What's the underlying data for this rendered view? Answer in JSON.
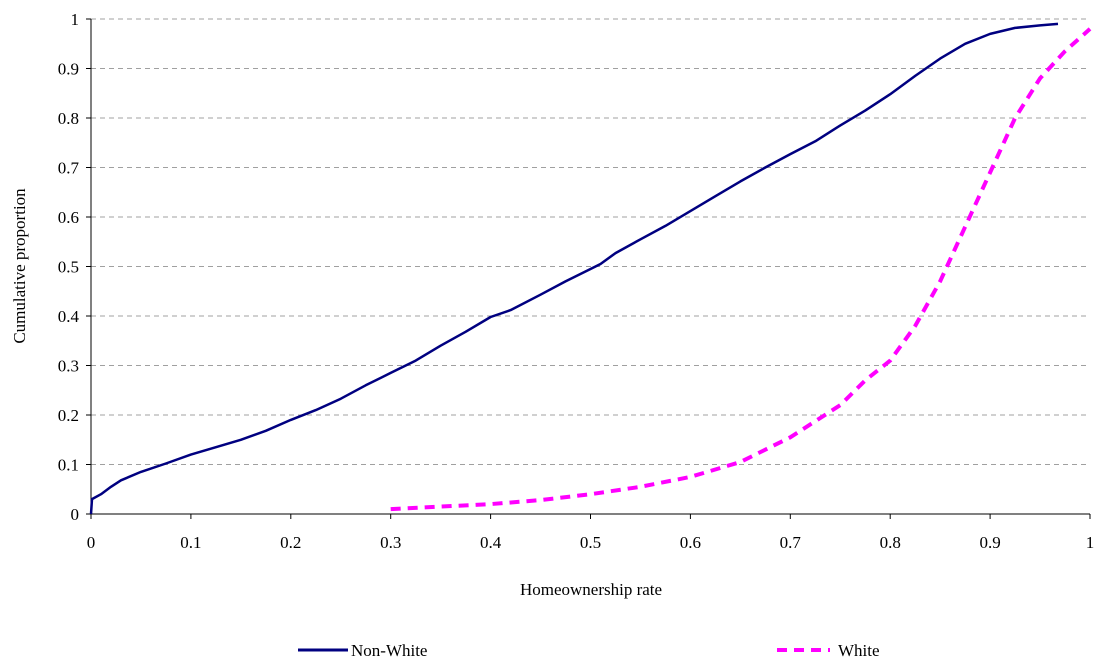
{
  "chart_data": {
    "type": "line",
    "xlabel": "Homeownership rate",
    "ylabel": "Cumulative proportion",
    "xlim": [
      0,
      1
    ],
    "ylim": [
      0,
      1
    ],
    "x_ticks": [
      "0",
      "0.1",
      "0.2",
      "0.3",
      "0.4",
      "0.5",
      "0.6",
      "0.7",
      "0.8",
      "0.9",
      "1"
    ],
    "y_ticks": [
      "0",
      "0.1",
      "0.2",
      "0.3",
      "0.4",
      "0.5",
      "0.6",
      "0.7",
      "0.8",
      "0.9",
      "1"
    ],
    "grid": "horizontal dashed",
    "legend_position": "bottom",
    "series": [
      {
        "name": "Non-White",
        "color": "#000080",
        "style": "solid",
        "points": [
          [
            0,
            0.0
          ],
          [
            0.001,
            0.03
          ],
          [
            0.01,
            0.04
          ],
          [
            0.02,
            0.055
          ],
          [
            0.03,
            0.068
          ],
          [
            0.05,
            0.085
          ],
          [
            0.075,
            0.102
          ],
          [
            0.1,
            0.12
          ],
          [
            0.125,
            0.135
          ],
          [
            0.15,
            0.15
          ],
          [
            0.175,
            0.168
          ],
          [
            0.2,
            0.19
          ],
          [
            0.225,
            0.21
          ],
          [
            0.25,
            0.233
          ],
          [
            0.275,
            0.26
          ],
          [
            0.3,
            0.285
          ],
          [
            0.325,
            0.31
          ],
          [
            0.35,
            0.34
          ],
          [
            0.375,
            0.368
          ],
          [
            0.4,
            0.398
          ],
          [
            0.42,
            0.412
          ],
          [
            0.45,
            0.443
          ],
          [
            0.475,
            0.47
          ],
          [
            0.5,
            0.495
          ],
          [
            0.51,
            0.505
          ],
          [
            0.525,
            0.527
          ],
          [
            0.55,
            0.555
          ],
          [
            0.575,
            0.582
          ],
          [
            0.6,
            0.612
          ],
          [
            0.625,
            0.642
          ],
          [
            0.65,
            0.672
          ],
          [
            0.675,
            0.7
          ],
          [
            0.7,
            0.727
          ],
          [
            0.725,
            0.753
          ],
          [
            0.75,
            0.785
          ],
          [
            0.775,
            0.815
          ],
          [
            0.8,
            0.848
          ],
          [
            0.825,
            0.885
          ],
          [
            0.85,
            0.92
          ],
          [
            0.875,
            0.95
          ],
          [
            0.9,
            0.97
          ],
          [
            0.925,
            0.982
          ],
          [
            0.95,
            0.987
          ],
          [
            0.968,
            0.99
          ]
        ]
      },
      {
        "name": "White",
        "color": "#ff00ff",
        "style": "dashed",
        "points": [
          [
            0.3,
            0.01
          ],
          [
            0.35,
            0.015
          ],
          [
            0.4,
            0.02
          ],
          [
            0.45,
            0.028
          ],
          [
            0.5,
            0.04
          ],
          [
            0.55,
            0.055
          ],
          [
            0.6,
            0.075
          ],
          [
            0.65,
            0.105
          ],
          [
            0.7,
            0.155
          ],
          [
            0.75,
            0.22
          ],
          [
            0.775,
            0.27
          ],
          [
            0.8,
            0.31
          ],
          [
            0.825,
            0.38
          ],
          [
            0.85,
            0.47
          ],
          [
            0.875,
            0.58
          ],
          [
            0.9,
            0.69
          ],
          [
            0.925,
            0.8
          ],
          [
            0.95,
            0.88
          ],
          [
            0.975,
            0.935
          ],
          [
            1.0,
            0.98
          ]
        ]
      }
    ]
  }
}
